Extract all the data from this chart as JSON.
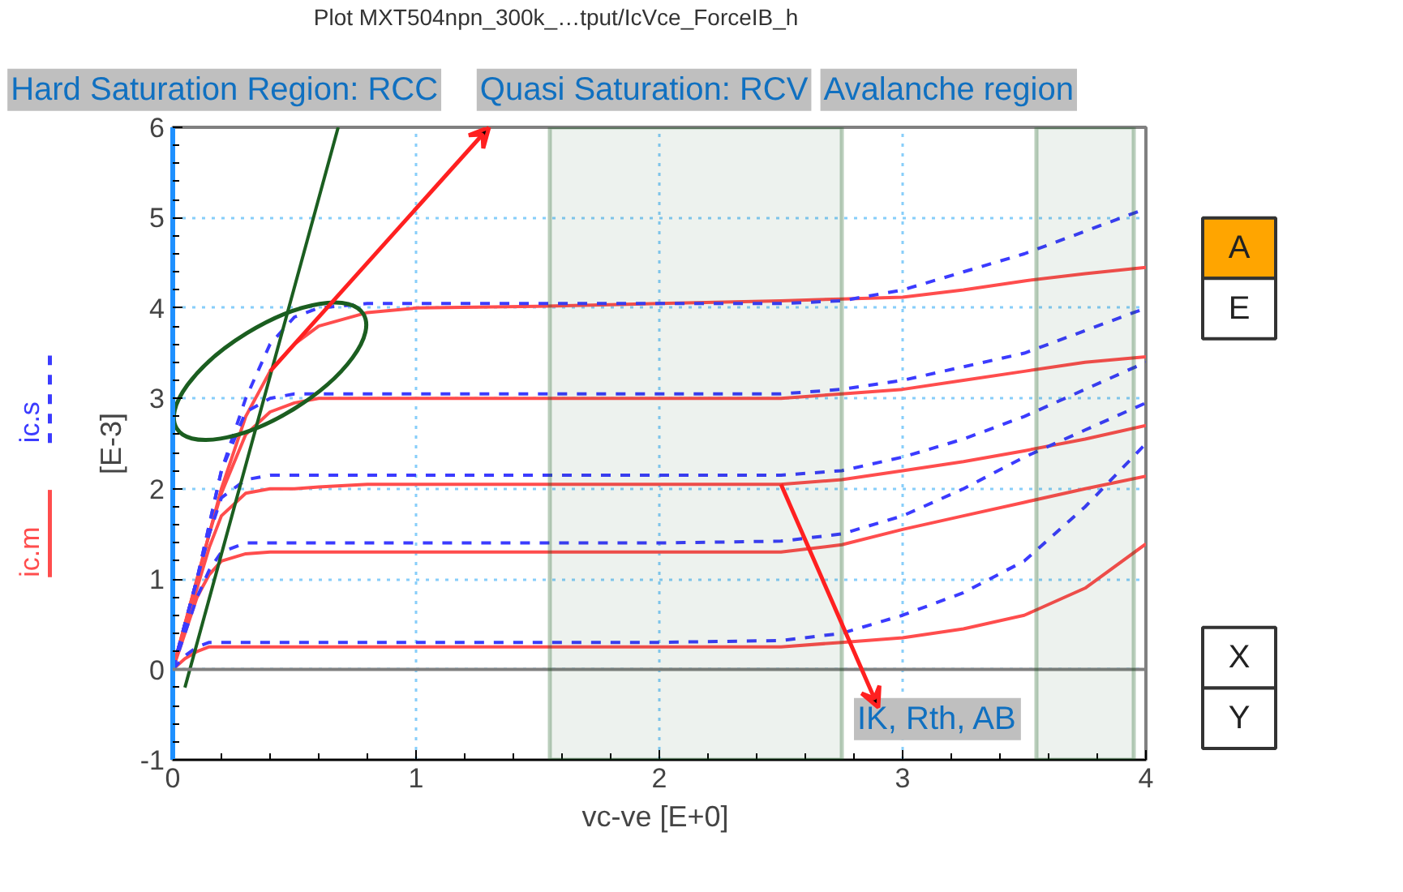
{
  "chart_data": {
    "type": "line",
    "title": "Plot MXT504npn_300k_…tput/IcVce_ForceIB_h",
    "xlabel": "vc-ve  [E+0]",
    "ylabel": "[E-3]",
    "x": [
      0,
      0.05,
      0.1,
      0.15,
      0.2,
      0.3,
      0.4,
      0.5,
      0.6,
      0.8,
      1.0,
      1.5,
      2.0,
      2.5,
      2.75,
      3.0,
      3.25,
      3.5,
      3.75,
      4.0
    ],
    "series": [
      {
        "name": "ic.m",
        "color": "#ff4d4d",
        "line_style": "solid",
        "values": [
          0,
          0.5,
          1.0,
          1.5,
          2.0,
          2.8,
          3.3,
          3.6,
          3.8,
          3.95,
          4.0,
          4.02,
          4.05,
          4.08,
          4.1,
          4.12,
          4.2,
          4.3,
          4.38,
          4.45
        ]
      },
      {
        "color": "#ff4d4d",
        "line_style": "solid",
        "values": [
          0,
          0.5,
          1.0,
          1.5,
          1.95,
          2.6,
          2.85,
          2.95,
          3.0,
          3.0,
          3.0,
          3.0,
          3.0,
          3.0,
          3.05,
          3.1,
          3.2,
          3.3,
          3.4,
          3.46
        ]
      },
      {
        "color": "#ff4d4d",
        "line_style": "solid",
        "values": [
          0,
          0.45,
          0.9,
          1.35,
          1.7,
          1.95,
          2.0,
          2.0,
          2.02,
          2.05,
          2.05,
          2.05,
          2.05,
          2.05,
          2.1,
          2.2,
          2.3,
          2.42,
          2.55,
          2.7
        ]
      },
      {
        "color": "#ff4d4d",
        "line_style": "solid",
        "values": [
          0,
          0.4,
          0.8,
          1.05,
          1.2,
          1.28,
          1.3,
          1.3,
          1.3,
          1.3,
          1.3,
          1.3,
          1.3,
          1.3,
          1.38,
          1.55,
          1.7,
          1.85,
          2.0,
          2.14
        ]
      },
      {
        "color": "#ff4d4d",
        "line_style": "solid",
        "values": [
          0,
          0.12,
          0.2,
          0.25,
          0.25,
          0.25,
          0.25,
          0.25,
          0.25,
          0.25,
          0.25,
          0.25,
          0.25,
          0.25,
          0.3,
          0.35,
          0.45,
          0.6,
          0.9,
          1.39
        ]
      },
      {
        "name": "ic.s",
        "color": "#3b3bff",
        "line_style": "dashed",
        "values": [
          0,
          0.5,
          1.0,
          1.6,
          2.2,
          3.0,
          3.6,
          3.9,
          4.0,
          4.05,
          4.05,
          4.05,
          4.05,
          4.05,
          4.08,
          4.2,
          4.4,
          4.6,
          4.85,
          5.1
        ]
      },
      {
        "color": "#3b3bff",
        "line_style": "dashed",
        "values": [
          0,
          0.5,
          1.0,
          1.6,
          2.2,
          2.85,
          3.0,
          3.05,
          3.05,
          3.05,
          3.05,
          3.05,
          3.05,
          3.05,
          3.1,
          3.2,
          3.35,
          3.5,
          3.75,
          4.0
        ]
      },
      {
        "color": "#3b3bff",
        "line_style": "dashed",
        "values": [
          0,
          0.5,
          1.0,
          1.5,
          1.9,
          2.1,
          2.15,
          2.15,
          2.15,
          2.15,
          2.15,
          2.15,
          2.15,
          2.15,
          2.2,
          2.35,
          2.55,
          2.8,
          3.1,
          3.4
        ]
      },
      {
        "color": "#3b3bff",
        "line_style": "dashed",
        "values": [
          0,
          0.4,
          0.8,
          1.1,
          1.3,
          1.4,
          1.4,
          1.4,
          1.4,
          1.4,
          1.4,
          1.4,
          1.4,
          1.42,
          1.5,
          1.7,
          2.0,
          2.35,
          2.65,
          2.95
        ]
      },
      {
        "color": "#3b3bff",
        "line_style": "dashed",
        "values": [
          0,
          0.15,
          0.25,
          0.3,
          0.3,
          0.3,
          0.3,
          0.3,
          0.3,
          0.3,
          0.3,
          0.3,
          0.3,
          0.32,
          0.4,
          0.6,
          0.85,
          1.2,
          1.8,
          2.5
        ]
      },
      {
        "color": "#1b5e20",
        "line_style": "solid",
        "x": [
          0.05,
          0.68
        ],
        "values": [
          -0.2,
          6.0
        ]
      }
    ],
    "xlim": [
      0,
      4
    ],
    "ylim": [
      -1,
      6
    ],
    "xticks": [
      0,
      1,
      2,
      3,
      4
    ],
    "yticks": [
      -1,
      0,
      1,
      2,
      3,
      4,
      5,
      6
    ],
    "grid": true,
    "legend": "left",
    "ref_lines": [
      {
        "axis": "y",
        "value": 0,
        "color": "#808080"
      }
    ],
    "bands": [
      {
        "axis": "x",
        "from": 1.55,
        "to": 2.75,
        "color": "#1b5e20"
      },
      {
        "axis": "x",
        "from": 3.55,
        "to": 3.95,
        "color": "#1b5e20"
      }
    ],
    "annotations": [
      "Hard Saturation Region: RCC",
      {
        "text": "Quasi Saturation: RCV",
        "x": 0.4,
        "y": 3.3
      },
      "Avalanche region",
      {
        "text": "IK, Rth, AB",
        "x": 2.5,
        "y": 2.05
      },
      "A",
      "E",
      "X",
      "Y"
    ]
  }
}
